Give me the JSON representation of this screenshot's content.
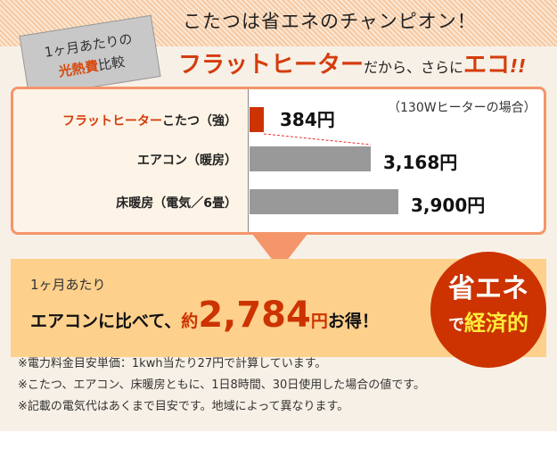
{
  "header": {
    "tag_line1": "1ヶ月あたりの",
    "tag_highlight": "光熱費",
    "tag_rest": "比較",
    "title": "こたつは省エネのチャンピオン！",
    "sub_red": "フラットヒーター",
    "sub_mid": "だから、さらに",
    "sub_red2": "エコ",
    "sub_end": "!!"
  },
  "chart_data": {
    "type": "bar",
    "orientation": "horizontal",
    "note": "（130Wヒーターの場合）",
    "categories": [
      {
        "red": "フラットヒーター",
        "rest": "こたつ（強）"
      },
      {
        "red": "",
        "rest": "エアコン（暖房）"
      },
      {
        "red": "",
        "rest": "床暖房（電気／6畳）"
      }
    ],
    "values": [
      384,
      3168,
      3900
    ],
    "value_labels": [
      "384円",
      "3,168円",
      "3,900円"
    ],
    "unit": "円",
    "colors": [
      "#cc3300",
      "#999999",
      "#999999"
    ]
  },
  "banner": {
    "line1": "1ヶ月あたり",
    "pre": "エアコンに比べて、",
    "approx": "約",
    "amount": "2,784",
    "yen": "円",
    "post": "お得！"
  },
  "badge": {
    "line1": "省エネ",
    "de": "で",
    "line2": "経済的"
  },
  "notes": [
    "※電力料金目安単価：1kwh当たり27円で計算しています。",
    "※こたつ、エアコン、床暖房ともに、1日8時間、30日使用した場合の値です。",
    "※記載の電気代はあくまで目安です。地域によって異なります。"
  ]
}
